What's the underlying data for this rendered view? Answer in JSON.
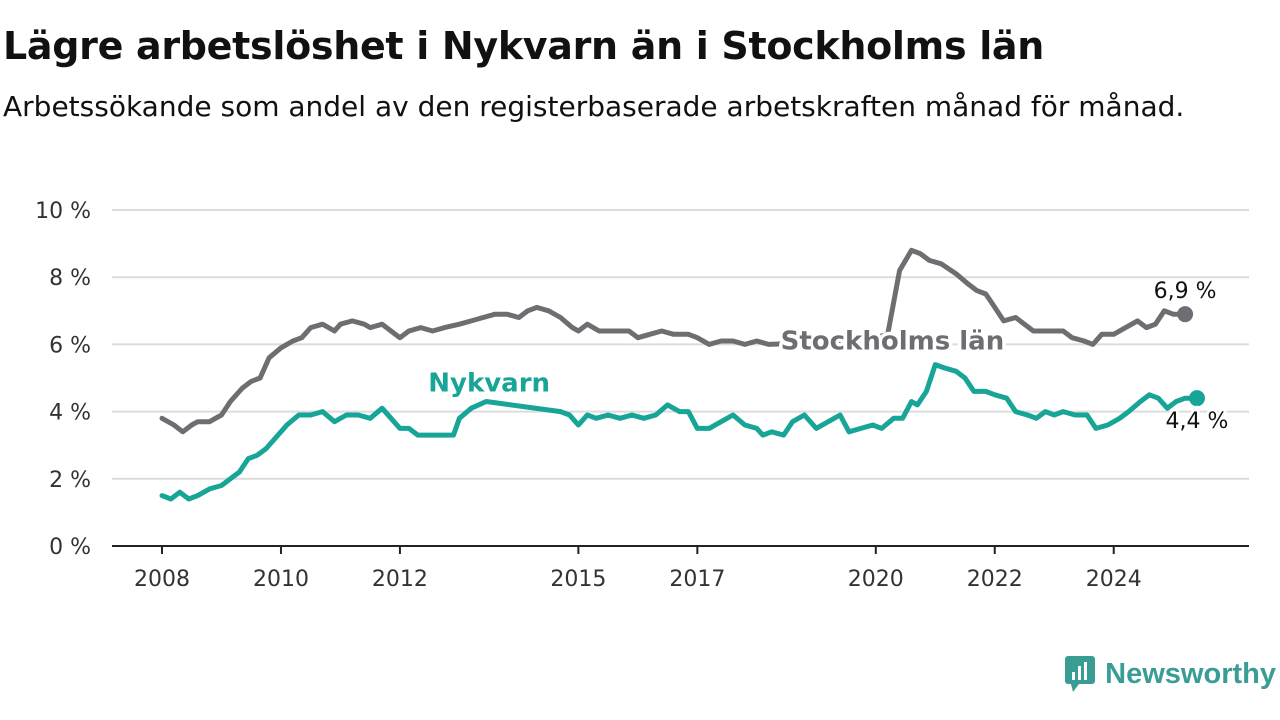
{
  "title": "Lägre arbetslöshet i Nykvarn än i Stockholms län",
  "subtitle": "Arbetssökande som andel av den registerbaserade arbetskraften månad för månad.",
  "brand": {
    "name": "Newsworthy",
    "icon": "newsworthy-logo-icon",
    "color": "#3a9d94"
  },
  "colors": {
    "grid": "#dcdcdc",
    "axis": "#222222",
    "tick_text": "#333333"
  },
  "chart_data": {
    "type": "line",
    "xlim": [
      2008.0,
      2025.4
    ],
    "ylim": [
      0,
      10
    ],
    "x_ticks": [
      2008,
      2010,
      2012,
      2015,
      2017,
      2020,
      2022,
      2024
    ],
    "y_ticks": [
      0,
      2,
      4,
      6,
      8,
      10
    ],
    "y_tick_labels": [
      "0 %",
      "2 %",
      "4 %",
      "6 %",
      "8 %",
      "10 %"
    ],
    "grid": "horizontal",
    "legend": "direct-labels",
    "series": [
      {
        "name": "Stockholms län",
        "color": "#6f6d72",
        "end_label": "6,9 %",
        "points": [
          [
            2008.0,
            3.8
          ],
          [
            2008.2,
            3.6
          ],
          [
            2008.35,
            3.4
          ],
          [
            2008.5,
            3.6
          ],
          [
            2008.6,
            3.7
          ],
          [
            2008.8,
            3.7
          ],
          [
            2008.9,
            3.8
          ],
          [
            2009.0,
            3.9
          ],
          [
            2009.15,
            4.3
          ],
          [
            2009.35,
            4.7
          ],
          [
            2009.5,
            4.9
          ],
          [
            2009.65,
            5.0
          ],
          [
            2009.8,
            5.6
          ],
          [
            2010.0,
            5.9
          ],
          [
            2010.2,
            6.1
          ],
          [
            2010.35,
            6.2
          ],
          [
            2010.5,
            6.5
          ],
          [
            2010.7,
            6.6
          ],
          [
            2010.9,
            6.4
          ],
          [
            2011.0,
            6.6
          ],
          [
            2011.2,
            6.7
          ],
          [
            2011.4,
            6.6
          ],
          [
            2011.5,
            6.5
          ],
          [
            2011.7,
            6.6
          ],
          [
            2011.85,
            6.4
          ],
          [
            2012.0,
            6.2
          ],
          [
            2012.15,
            6.4
          ],
          [
            2012.35,
            6.5
          ],
          [
            2012.55,
            6.4
          ],
          [
            2012.75,
            6.5
          ],
          [
            2013.0,
            6.6
          ],
          [
            2013.2,
            6.7
          ],
          [
            2013.4,
            6.8
          ],
          [
            2013.6,
            6.9
          ],
          [
            2013.8,
            6.9
          ],
          [
            2014.0,
            6.8
          ],
          [
            2014.15,
            7.0
          ],
          [
            2014.3,
            7.1
          ],
          [
            2014.5,
            7.0
          ],
          [
            2014.7,
            6.8
          ],
          [
            2014.9,
            6.5
          ],
          [
            2015.0,
            6.4
          ],
          [
            2015.15,
            6.6
          ],
          [
            2015.35,
            6.4
          ],
          [
            2015.6,
            6.4
          ],
          [
            2015.85,
            6.4
          ],
          [
            2016.0,
            6.2
          ],
          [
            2016.2,
            6.3
          ],
          [
            2016.4,
            6.4
          ],
          [
            2016.6,
            6.3
          ],
          [
            2016.85,
            6.3
          ],
          [
            2017.0,
            6.2
          ],
          [
            2017.2,
            6.0
          ],
          [
            2017.4,
            6.1
          ],
          [
            2017.6,
            6.1
          ],
          [
            2017.8,
            6.0
          ],
          [
            2018.0,
            6.1
          ],
          [
            2018.2,
            6.0
          ],
          [
            2019.8,
            6.1
          ],
          [
            2020.0,
            6.2
          ],
          [
            2020.2,
            6.3
          ],
          [
            2020.4,
            8.2
          ],
          [
            2020.6,
            8.8
          ],
          [
            2020.75,
            8.7
          ],
          [
            2020.9,
            8.5
          ],
          [
            2021.1,
            8.4
          ],
          [
            2021.35,
            8.1
          ],
          [
            2021.55,
            7.8
          ],
          [
            2021.7,
            7.6
          ],
          [
            2021.85,
            7.5
          ],
          [
            2022.0,
            7.1
          ],
          [
            2022.15,
            6.7
          ],
          [
            2022.35,
            6.8
          ],
          [
            2022.5,
            6.6
          ],
          [
            2022.65,
            6.4
          ],
          [
            2022.85,
            6.4
          ],
          [
            2023.0,
            6.4
          ],
          [
            2023.15,
            6.4
          ],
          [
            2023.3,
            6.2
          ],
          [
            2023.5,
            6.1
          ],
          [
            2023.65,
            6.0
          ],
          [
            2023.8,
            6.3
          ],
          [
            2024.0,
            6.3
          ],
          [
            2024.2,
            6.5
          ],
          [
            2024.4,
            6.7
          ],
          [
            2024.55,
            6.5
          ],
          [
            2024.7,
            6.6
          ],
          [
            2024.85,
            7.0
          ],
          [
            2025.0,
            6.9
          ],
          [
            2025.2,
            6.9
          ]
        ]
      },
      {
        "name": "Nykvarn",
        "color": "#17a597",
        "end_label": "4,4 %",
        "points": [
          [
            2008.0,
            1.5
          ],
          [
            2008.15,
            1.4
          ],
          [
            2008.3,
            1.6
          ],
          [
            2008.45,
            1.4
          ],
          [
            2008.6,
            1.5
          ],
          [
            2008.8,
            1.7
          ],
          [
            2009.0,
            1.8
          ],
          [
            2009.15,
            2.0
          ],
          [
            2009.3,
            2.2
          ],
          [
            2009.45,
            2.6
          ],
          [
            2009.6,
            2.7
          ],
          [
            2009.75,
            2.9
          ],
          [
            2009.9,
            3.2
          ],
          [
            2010.1,
            3.6
          ],
          [
            2010.3,
            3.9
          ],
          [
            2010.5,
            3.9
          ],
          [
            2010.7,
            4.0
          ],
          [
            2010.9,
            3.7
          ],
          [
            2011.1,
            3.9
          ],
          [
            2011.3,
            3.9
          ],
          [
            2011.5,
            3.8
          ],
          [
            2011.7,
            4.1
          ],
          [
            2011.9,
            3.7
          ],
          [
            2012.0,
            3.5
          ],
          [
            2012.15,
            3.5
          ],
          [
            2012.3,
            3.3
          ],
          [
            2012.5,
            3.3
          ],
          [
            2012.7,
            3.3
          ],
          [
            2012.9,
            3.3
          ],
          [
            2013.0,
            3.8
          ],
          [
            2013.2,
            4.1
          ],
          [
            2013.45,
            4.3
          ],
          [
            2014.7,
            4.0
          ],
          [
            2014.85,
            3.9
          ],
          [
            2015.0,
            3.6
          ],
          [
            2015.15,
            3.9
          ],
          [
            2015.3,
            3.8
          ],
          [
            2015.5,
            3.9
          ],
          [
            2015.7,
            3.8
          ],
          [
            2015.9,
            3.9
          ],
          [
            2016.1,
            3.8
          ],
          [
            2016.3,
            3.9
          ],
          [
            2016.5,
            4.2
          ],
          [
            2016.7,
            4.0
          ],
          [
            2016.85,
            4.0
          ],
          [
            2017.0,
            3.5
          ],
          [
            2017.2,
            3.5
          ],
          [
            2017.4,
            3.7
          ],
          [
            2017.6,
            3.9
          ],
          [
            2017.8,
            3.6
          ],
          [
            2018.0,
            3.5
          ],
          [
            2018.1,
            3.3
          ],
          [
            2018.25,
            3.4
          ],
          [
            2018.45,
            3.3
          ],
          [
            2018.6,
            3.7
          ],
          [
            2018.8,
            3.9
          ],
          [
            2019.0,
            3.5
          ],
          [
            2019.2,
            3.7
          ],
          [
            2019.4,
            3.9
          ],
          [
            2019.55,
            3.4
          ],
          [
            2019.75,
            3.5
          ],
          [
            2019.95,
            3.6
          ],
          [
            2020.1,
            3.5
          ],
          [
            2020.3,
            3.8
          ],
          [
            2020.45,
            3.8
          ],
          [
            2020.6,
            4.3
          ],
          [
            2020.7,
            4.2
          ],
          [
            2020.85,
            4.6
          ],
          [
            2021.0,
            5.4
          ],
          [
            2021.15,
            5.3
          ],
          [
            2021.35,
            5.2
          ],
          [
            2021.5,
            5.0
          ],
          [
            2021.65,
            4.6
          ],
          [
            2021.85,
            4.6
          ],
          [
            2022.0,
            4.5
          ],
          [
            2022.2,
            4.4
          ],
          [
            2022.35,
            4.0
          ],
          [
            2022.55,
            3.9
          ],
          [
            2022.7,
            3.8
          ],
          [
            2022.85,
            4.0
          ],
          [
            2023.0,
            3.9
          ],
          [
            2023.15,
            4.0
          ],
          [
            2023.35,
            3.9
          ],
          [
            2023.55,
            3.9
          ],
          [
            2023.7,
            3.5
          ],
          [
            2023.9,
            3.6
          ],
          [
            2024.1,
            3.8
          ],
          [
            2024.25,
            4.0
          ],
          [
            2024.45,
            4.3
          ],
          [
            2024.6,
            4.5
          ],
          [
            2024.75,
            4.4
          ],
          [
            2024.9,
            4.1
          ],
          [
            2025.05,
            4.3
          ],
          [
            2025.2,
            4.4
          ],
          [
            2025.4,
            4.4
          ]
        ]
      }
    ]
  }
}
